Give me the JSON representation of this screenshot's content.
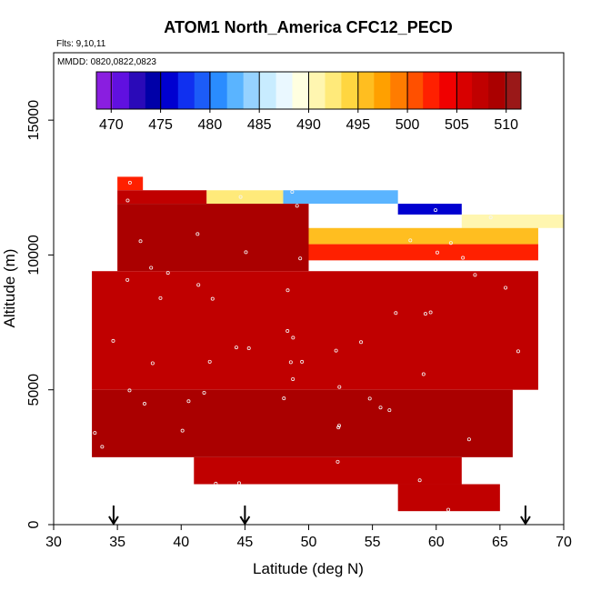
{
  "chart_data": {
    "type": "heatmap",
    "title": "ATOM1 North_America CFC12_PECD",
    "subtitle_flights": "Flts: 9,10,11",
    "subtitle_dates": "MMDD: 0820,0822,0823",
    "xlabel": "Latitude (deg N)",
    "ylabel": "Altitude (m)",
    "xlim": [
      30,
      70
    ],
    "ylim": [
      0,
      17500
    ],
    "x_ticks": [
      "30",
      "35",
      "40",
      "45",
      "50",
      "55",
      "60",
      "65",
      "70"
    ],
    "y_ticks": [
      "0",
      "5000",
      "10000",
      "15000"
    ],
    "colorbar": {
      "range": [
        468.5,
        511.5
      ],
      "ticks": [
        "470",
        "475",
        "480",
        "485",
        "490",
        "495",
        "500",
        "505",
        "510"
      ],
      "colors": [
        "#8a1ee0",
        "#6010e0",
        "#2a0ab8",
        "#0000a8",
        "#0000d0",
        "#1030f0",
        "#1c5cf8",
        "#2a8cff",
        "#5ab4ff",
        "#96d2ff",
        "#c8ecff",
        "#eaf8ff",
        "#ffffe0",
        "#fff6b0",
        "#ffea7a",
        "#ffd640",
        "#ffbe20",
        "#ffa000",
        "#ff7c00",
        "#ff5000",
        "#ff2000",
        "#f00000",
        "#d80000",
        "#c00000",
        "#aa0000",
        "#9a1818"
      ]
    },
    "profile_markers_lat": [
      34.7,
      45,
      67
    ],
    "cells": [
      {
        "lat_range": [
          35,
          37
        ],
        "alt_range": [
          12400,
          12900
        ],
        "value": 502
      },
      {
        "lat_range": [
          35,
          42
        ],
        "alt_range": [
          11900,
          12400
        ],
        "value": 508
      },
      {
        "lat_range": [
          42,
          48
        ],
        "alt_range": [
          11900,
          12400
        ],
        "value": 493
      },
      {
        "lat_range": [
          48,
          57
        ],
        "alt_range": [
          11900,
          12400
        ],
        "value": 482
      },
      {
        "lat_range": [
          57,
          62
        ],
        "alt_range": [
          11500,
          11900
        ],
        "value": 476
      },
      {
        "lat_range": [
          62,
          70
        ],
        "alt_range": [
          11000,
          11500
        ],
        "value": 490
      },
      {
        "lat_range": [
          48,
          68
        ],
        "alt_range": [
          10400,
          11000
        ],
        "value": 496
      },
      {
        "lat_range": [
          50,
          68
        ],
        "alt_range": [
          9800,
          10400
        ],
        "value": 502
      },
      {
        "lat_range": [
          35,
          50
        ],
        "alt_range": [
          9400,
          11900
        ],
        "value": 509
      },
      {
        "lat_range": [
          33,
          68
        ],
        "alt_range": [
          5000,
          9400
        ],
        "value": 508
      },
      {
        "lat_range": [
          33,
          66
        ],
        "alt_range": [
          2500,
          5000
        ],
        "value": 509
      },
      {
        "lat_range": [
          41,
          62
        ],
        "alt_range": [
          1500,
          2500
        ],
        "value": 508
      },
      {
        "lat_range": [
          57,
          65
        ],
        "alt_range": [
          500,
          1500
        ],
        "value": 507
      }
    ]
  }
}
